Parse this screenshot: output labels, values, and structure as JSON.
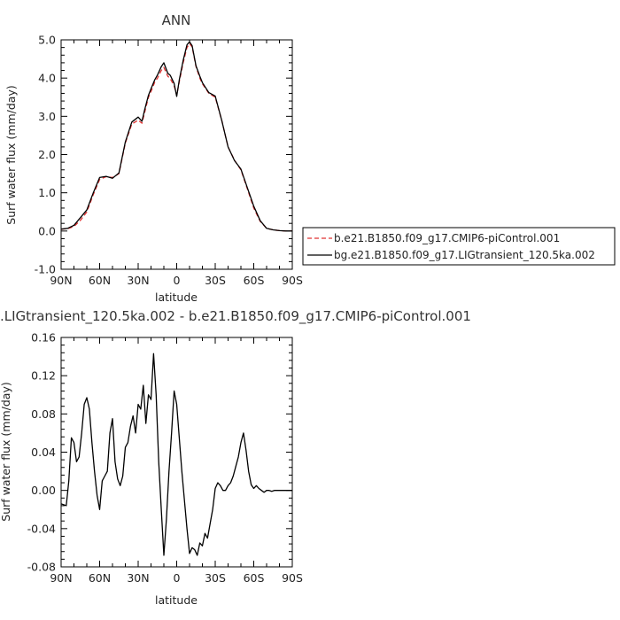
{
  "chart_data": [
    {
      "type": "line",
      "title": "ANN",
      "xlabel": "latitude",
      "ylabel": "Surf water flux (mm/day)",
      "xlim": [
        -90,
        90
      ],
      "ylim": [
        -1.0,
        5.0
      ],
      "x_ticks": [
        -90,
        -60,
        -30,
        0,
        30,
        60,
        90
      ],
      "x_tick_labels": [
        "90N",
        "60N",
        "30N",
        "0",
        "30S",
        "60S",
        "90S"
      ],
      "y_ticks": [
        -1.0,
        0.0,
        1.0,
        2.0,
        3.0,
        4.0,
        5.0
      ],
      "y_tick_labels": [
        "-1.0",
        "0.0",
        "1.0",
        "2.0",
        "3.0",
        "4.0",
        "5.0"
      ],
      "legend_position": "right",
      "series": [
        {
          "name": "b.e21.B1850.f09_g17.CMIP6-piControl.001",
          "color": "#e03030",
          "dash": "dashed",
          "x": [
            -90,
            -85,
            -80,
            -75,
            -70,
            -65,
            -60,
            -55,
            -50,
            -45,
            -40,
            -35,
            -30,
            -27,
            -25,
            -22,
            -20,
            -17,
            -15,
            -12,
            -10,
            -7,
            -5,
            -2,
            0,
            2,
            5,
            8,
            10,
            12,
            15,
            18,
            20,
            25,
            30,
            35,
            40,
            45,
            50,
            55,
            60,
            65,
            70,
            75,
            80,
            85,
            90
          ],
          "y": [
            0.05,
            0.06,
            0.12,
            0.28,
            0.5,
            0.95,
            1.35,
            1.42,
            1.4,
            1.5,
            2.3,
            2.8,
            2.9,
            2.82,
            3.1,
            3.5,
            3.65,
            3.9,
            4.0,
            4.2,
            4.28,
            4.05,
            3.98,
            3.8,
            3.55,
            3.9,
            4.4,
            4.8,
            4.9,
            4.82,
            4.3,
            4.0,
            3.85,
            3.6,
            3.5,
            2.9,
            2.2,
            1.85,
            1.6,
            1.1,
            0.6,
            0.25,
            0.07,
            0.03,
            0.01,
            0.0,
            0.0
          ]
        },
        {
          "name": "bg.e21.B1850.f09_g17.LIGtransient_120.5ka.002",
          "color": "#000000",
          "dash": "solid",
          "x": [
            -90,
            -85,
            -80,
            -75,
            -70,
            -65,
            -60,
            -55,
            -50,
            -45,
            -40,
            -35,
            -30,
            -27,
            -25,
            -22,
            -20,
            -17,
            -15,
            -12,
            -10,
            -7,
            -5,
            -2,
            0,
            2,
            5,
            8,
            10,
            12,
            15,
            18,
            20,
            25,
            30,
            35,
            40,
            45,
            50,
            55,
            60,
            65,
            70,
            75,
            80,
            85,
            90
          ],
          "y": [
            0.05,
            0.07,
            0.15,
            0.35,
            0.55,
            1.0,
            1.4,
            1.43,
            1.38,
            1.52,
            2.33,
            2.85,
            2.98,
            2.87,
            3.17,
            3.55,
            3.72,
            3.96,
            4.08,
            4.3,
            4.4,
            4.13,
            4.07,
            3.86,
            3.52,
            3.95,
            4.46,
            4.87,
            4.95,
            4.85,
            4.32,
            4.05,
            3.88,
            3.62,
            3.53,
            2.9,
            2.2,
            1.84,
            1.62,
            1.13,
            0.65,
            0.27,
            0.07,
            0.03,
            0.01,
            0.0,
            0.0
          ]
        }
      ]
    },
    {
      "type": "line",
      "title": ".LIGtransient_120.5ka.002 - b.e21.B1850.f09_g17.CMIP6-piControl.001",
      "xlabel": "latitude",
      "ylabel": "Surf water flux (mm/day)",
      "xlim": [
        -90,
        90
      ],
      "ylim": [
        -0.08,
        0.16
      ],
      "x_ticks": [
        -90,
        -60,
        -30,
        0,
        30,
        60,
        90
      ],
      "x_tick_labels": [
        "90N",
        "60N",
        "30N",
        "0",
        "30S",
        "60S",
        "90S"
      ],
      "y_ticks": [
        -0.08,
        -0.04,
        0.0,
        0.04,
        0.08,
        0.12,
        0.16
      ],
      "y_tick_labels": [
        "-0.08",
        "-0.04",
        "0.00",
        "0.04",
        "0.08",
        "0.12",
        "0.16"
      ],
      "series": [
        {
          "name": "",
          "color": "#000000",
          "dash": "solid",
          "x": [
            -90,
            -86,
            -84,
            -82,
            -80,
            -78,
            -76,
            -74,
            -72,
            -70,
            -68,
            -66,
            -64,
            -62,
            -60,
            -58,
            -56,
            -54,
            -52,
            -50,
            -48,
            -46,
            -44,
            -42,
            -40,
            -38,
            -36,
            -34,
            -32,
            -30,
            -28,
            -26,
            -24,
            -22,
            -20,
            -18,
            -16,
            -14,
            -12,
            -10,
            -8,
            -6,
            -4,
            -2,
            0,
            2,
            4,
            6,
            8,
            10,
            12,
            14,
            16,
            18,
            20,
            22,
            24,
            26,
            28,
            30,
            32,
            34,
            36,
            38,
            40,
            42,
            44,
            46,
            48,
            50,
            52,
            54,
            56,
            58,
            60,
            62,
            64,
            66,
            68,
            70,
            72,
            74,
            76,
            78,
            80,
            82,
            84,
            86,
            88,
            90
          ],
          "y": [
            -0.014,
            -0.016,
            0.01,
            0.055,
            0.05,
            0.03,
            0.035,
            0.06,
            0.09,
            0.097,
            0.085,
            0.05,
            0.02,
            -0.005,
            -0.02,
            0.01,
            0.015,
            0.02,
            0.06,
            0.075,
            0.03,
            0.012,
            0.005,
            0.015,
            0.045,
            0.05,
            0.067,
            0.078,
            0.06,
            0.09,
            0.085,
            0.11,
            0.07,
            0.1,
            0.095,
            0.143,
            0.1,
            0.03,
            -0.02,
            -0.068,
            -0.03,
            0.02,
            0.06,
            0.104,
            0.09,
            0.055,
            0.02,
            -0.01,
            -0.04,
            -0.066,
            -0.06,
            -0.062,
            -0.068,
            -0.055,
            -0.058,
            -0.045,
            -0.05,
            -0.035,
            -0.02,
            0.002,
            0.008,
            0.005,
            0.0,
            0.0,
            0.005,
            0.008,
            0.015,
            0.025,
            0.035,
            0.05,
            0.06,
            0.042,
            0.02,
            0.006,
            0.002,
            0.005,
            0.002,
            0.0,
            -0.002,
            0.0,
            0.0,
            -0.001,
            0.0,
            0.0,
            0.0,
            0.0,
            0.0,
            0.0,
            0.0,
            0.0
          ]
        }
      ]
    }
  ]
}
